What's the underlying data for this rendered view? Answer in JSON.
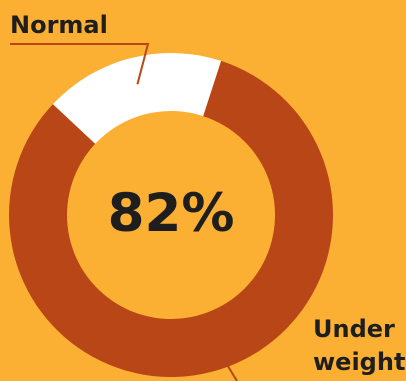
{
  "chart_data": {
    "type": "pie",
    "donut": true,
    "center_label": "82%",
    "categories": [
      "Under weight",
      "Normal"
    ],
    "values": [
      82,
      18
    ],
    "colors": [
      "#b84616",
      "#ffffff"
    ],
    "background": "#fbb034",
    "leader_line_color": "#b84616",
    "labels": {
      "normal": "Normal",
      "under_weight": "Under weight"
    }
  }
}
